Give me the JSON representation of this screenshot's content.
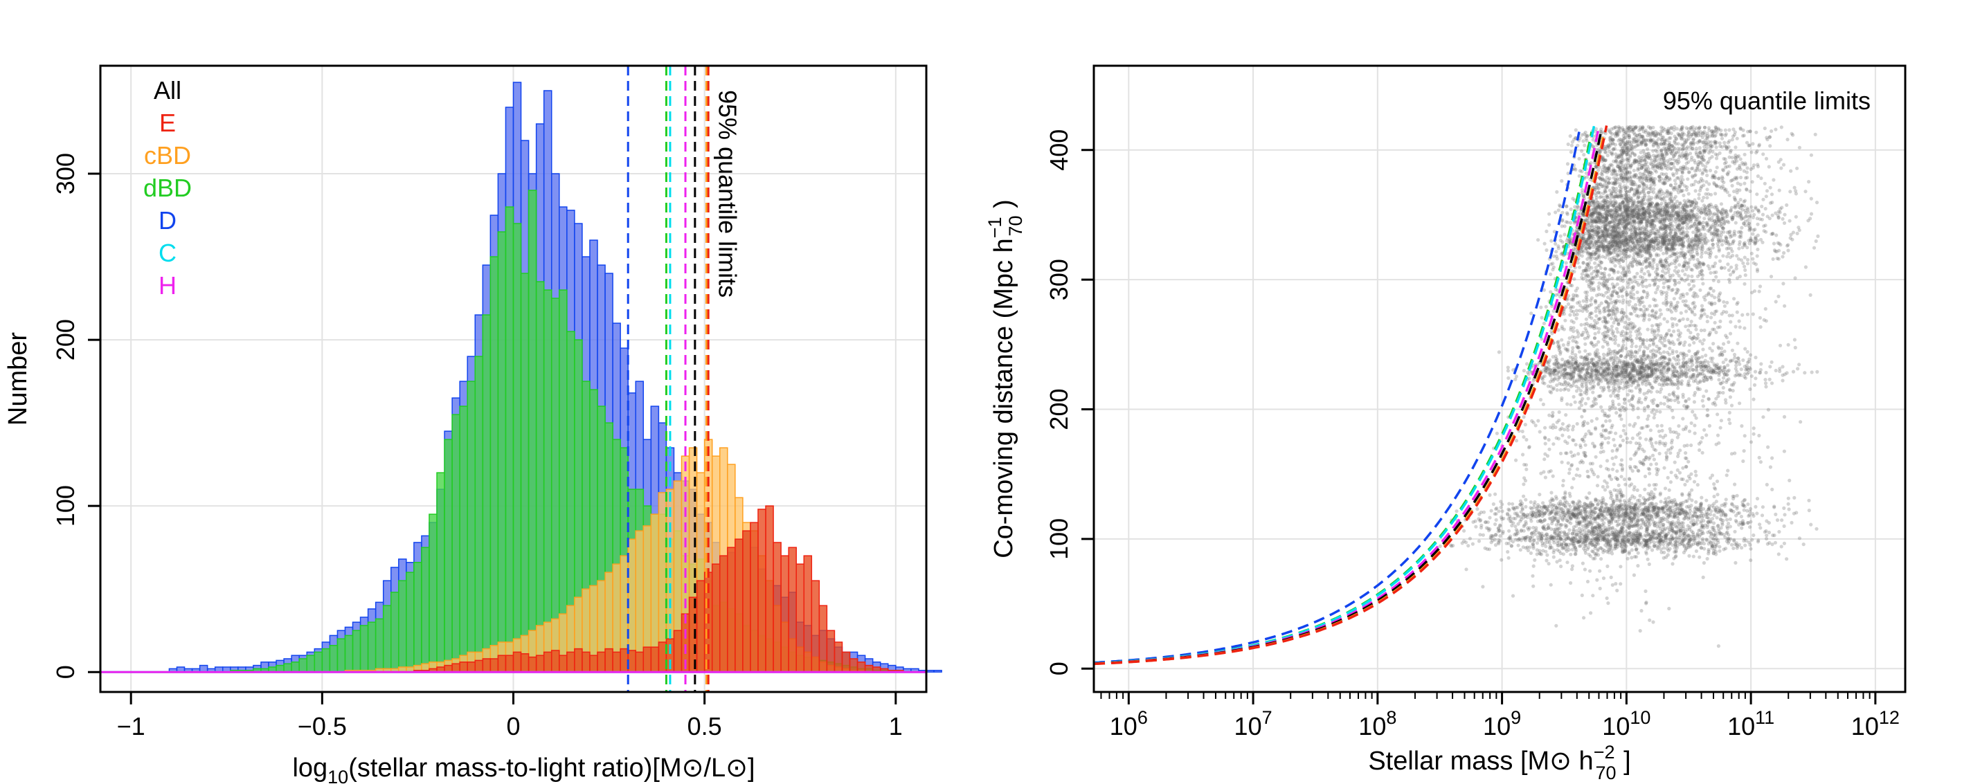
{
  "chart_data": [
    {
      "type": "histogram",
      "title": "",
      "xlabel": "log10(stellar mass-to-light ratio)[M⊙/L⊙]",
      "ylabel": "Number",
      "xlim": [
        -1.08,
        1.08
      ],
      "ylim": [
        -12,
        365
      ],
      "grid": true,
      "x_ticks": [
        {
          "value": -1,
          "label": "−1"
        },
        {
          "value": -0.5,
          "label": "−0.5"
        },
        {
          "value": 0,
          "label": "0"
        },
        {
          "value": 0.5,
          "label": "0.5"
        },
        {
          "value": 1,
          "label": "1"
        }
      ],
      "y_ticks": [
        {
          "value": 0,
          "label": "0"
        },
        {
          "value": 100,
          "label": "100"
        },
        {
          "value": 200,
          "label": "200"
        },
        {
          "value": 300,
          "label": "300"
        }
      ],
      "bin_start": -1.08,
      "bin_width": 0.02,
      "legend_position": "top-left",
      "legend": [
        {
          "name": "All",
          "color": "#000000"
        },
        {
          "name": "E",
          "color": "#ee2211"
        },
        {
          "name": "cBD",
          "color": "#ffa020"
        },
        {
          "name": "dBD",
          "color": "#22cc22"
        },
        {
          "name": "D",
          "color": "#1144ee"
        },
        {
          "name": "C",
          "color": "#00ddee"
        },
        {
          "name": "H",
          "color": "#ee22ee"
        }
      ],
      "series": [
        {
          "name": "D",
          "color": "#1144ee",
          "fill": "#5b72f0",
          "values": [
            0,
            0,
            0,
            0,
            0,
            0,
            0,
            0,
            0,
            2,
            3,
            2,
            2,
            4,
            2,
            3,
            3,
            3,
            3,
            3,
            4,
            6,
            6,
            7,
            8,
            10,
            10,
            12,
            14,
            18,
            22,
            25,
            27,
            30,
            33,
            38,
            42,
            55,
            63,
            68,
            66,
            78,
            82,
            90,
            110,
            145,
            165,
            175,
            190,
            215,
            245,
            275,
            300,
            340,
            355,
            320,
            300,
            330,
            350,
            300,
            280,
            278,
            270,
            250,
            260,
            245,
            240,
            210,
            195,
            168,
            175,
            140,
            160,
            150,
            135,
            120,
            115,
            110,
            95,
            90,
            78,
            70,
            72,
            80,
            85,
            75,
            62,
            55,
            52,
            45,
            48,
            30,
            28,
            22,
            25,
            20,
            15,
            12,
            12,
            10,
            8,
            6,
            5,
            4,
            3,
            2,
            2,
            1,
            1,
            1,
            0,
            0,
            0,
            0
          ]
        },
        {
          "name": "dBD",
          "color": "#22cc22",
          "fill": "#44d444",
          "values": [
            0,
            0,
            0,
            0,
            0,
            0,
            0,
            0,
            0,
            0,
            0,
            0,
            0,
            0,
            0,
            0,
            0,
            1,
            1,
            1,
            2,
            2,
            3,
            4,
            5,
            6,
            8,
            10,
            12,
            14,
            16,
            20,
            22,
            25,
            28,
            30,
            32,
            40,
            48,
            55,
            60,
            66,
            75,
            95,
            120,
            140,
            155,
            160,
            175,
            190,
            215,
            250,
            265,
            280,
            270,
            240,
            290,
            235,
            230,
            225,
            230,
            205,
            200,
            175,
            170,
            160,
            150,
            140,
            135,
            110,
            110,
            100,
            95,
            95,
            80,
            85,
            70,
            65,
            68,
            55,
            40,
            42,
            38,
            35,
            28,
            25,
            22,
            20,
            18,
            15,
            12,
            10,
            9,
            8,
            7,
            6,
            5,
            4,
            3,
            2,
            2,
            1,
            1,
            1,
            0,
            0,
            0,
            0
          ]
        },
        {
          "name": "cBD",
          "color": "#ffa020",
          "fill": "#ffc466",
          "values": [
            0,
            0,
            0,
            0,
            0,
            0,
            0,
            0,
            0,
            0,
            0,
            0,
            0,
            0,
            0,
            0,
            0,
            0,
            0,
            0,
            0,
            0,
            0,
            0,
            0,
            0,
            0,
            0,
            0,
            0,
            0,
            0,
            1,
            1,
            1,
            1,
            2,
            2,
            2,
            3,
            3,
            4,
            5,
            6,
            6,
            7,
            8,
            10,
            12,
            12,
            14,
            16,
            18,
            18,
            20,
            22,
            25,
            28,
            30,
            32,
            35,
            40,
            45,
            50,
            52,
            55,
            60,
            65,
            70,
            80,
            85,
            88,
            95,
            108,
            110,
            115,
            130,
            135,
            120,
            140,
            130,
            135,
            125,
            105,
            90,
            85,
            70,
            55,
            40,
            30,
            20,
            15,
            12,
            9,
            6,
            4,
            3,
            2,
            1,
            1,
            0,
            0,
            0,
            0,
            0,
            0,
            0,
            0
          ]
        },
        {
          "name": "E",
          "color": "#ee2211",
          "fill": "#e8481c",
          "values": [
            0,
            0,
            0,
            0,
            0,
            0,
            0,
            0,
            0,
            0,
            0,
            0,
            0,
            0,
            0,
            0,
            0,
            0,
            0,
            0,
            0,
            0,
            0,
            0,
            0,
            0,
            0,
            0,
            0,
            0,
            0,
            0,
            0,
            0,
            0,
            0,
            0,
            0,
            0,
            0,
            0,
            1,
            1,
            2,
            3,
            4,
            5,
            6,
            6,
            7,
            8,
            8,
            10,
            10,
            12,
            11,
            9,
            10,
            12,
            13,
            10,
            12,
            14,
            12,
            10,
            12,
            14,
            12,
            14,
            13,
            12,
            15,
            15,
            18,
            20,
            25,
            35,
            45,
            55,
            60,
            65,
            70,
            75,
            80,
            85,
            90,
            98,
            100,
            78,
            70,
            75,
            65,
            70,
            55,
            40,
            25,
            18,
            12,
            8,
            6,
            4,
            3,
            2,
            1,
            1,
            0,
            0,
            0
          ]
        },
        {
          "name": "C",
          "color": "#00ddee",
          "fill": "#00ddee",
          "values": [
            0,
            0,
            0,
            0,
            0,
            0,
            0,
            0,
            0,
            0,
            0,
            0,
            0,
            0,
            0,
            0,
            0,
            0,
            0,
            0,
            0,
            0,
            0,
            0,
            0,
            0,
            0,
            0,
            0,
            0,
            0,
            0,
            0,
            0,
            0,
            0,
            0,
            0,
            0,
            0,
            0,
            0,
            0,
            0,
            0,
            0,
            0,
            0,
            0,
            0,
            0,
            0,
            0,
            0,
            0,
            0,
            0,
            0,
            0,
            0,
            0,
            0,
            0,
            0,
            0,
            0,
            0,
            0,
            0,
            0,
            0,
            0,
            0,
            0,
            0,
            0,
            0,
            0,
            0,
            0,
            0,
            0,
            0,
            0,
            0,
            0,
            0,
            0,
            0,
            0,
            0,
            0,
            0,
            0,
            0,
            0,
            0,
            0,
            0,
            0,
            0,
            0,
            0,
            0,
            0,
            0,
            0,
            0,
            0
          ]
        },
        {
          "name": "H",
          "color": "#ee22ee",
          "fill": "#ee22ee",
          "values": [
            0,
            0,
            0,
            0,
            0,
            0,
            0,
            0,
            0,
            0,
            0,
            0,
            0,
            0,
            0,
            0,
            0,
            0,
            0,
            0,
            0,
            0,
            0,
            0,
            0,
            0,
            0,
            0,
            0,
            0,
            0,
            0,
            0,
            0,
            0,
            0,
            0,
            0,
            0,
            0,
            0,
            0,
            0,
            0,
            0,
            0,
            0,
            0,
            0,
            0,
            0,
            0,
            0,
            0,
            0,
            0,
            0,
            0,
            0,
            0,
            0,
            0,
            0,
            0,
            0,
            0,
            0,
            0,
            0,
            0,
            0,
            0,
            0,
            0,
            0,
            0,
            0,
            0,
            0,
            0,
            0,
            0,
            0,
            0,
            0,
            0,
            0,
            0,
            0,
            0,
            0,
            0,
            0,
            0,
            0,
            0,
            0,
            0,
            0,
            0,
            0,
            0,
            0,
            0,
            0,
            0,
            0,
            0,
            0
          ]
        }
      ],
      "quantile_lines": [
        {
          "name": "D",
          "value": 0.3,
          "color": "#1144ee"
        },
        {
          "name": "dBD",
          "value": 0.4,
          "color": "#22cc22"
        },
        {
          "name": "C",
          "value": 0.41,
          "color": "#00ddee"
        },
        {
          "name": "H",
          "value": 0.45,
          "color": "#ee22ee"
        },
        {
          "name": "All",
          "value": 0.475,
          "color": "#000000"
        },
        {
          "name": "cBD",
          "value": 0.505,
          "color": "#ffa020"
        },
        {
          "name": "E",
          "value": 0.51,
          "color": "#ee2211"
        }
      ],
      "annotation": "95% quantile limits"
    },
    {
      "type": "scatter",
      "title": "",
      "xlabel": "Stellar mass [M⊙ h70^−2 ]",
      "ylabel": "Co-moving distance (Mpc h70^−1 )",
      "x_scale": "log",
      "xlim_log10": [
        5.72,
        12.24
      ],
      "ylim": [
        -18,
        465
      ],
      "grid": true,
      "x_ticks": [
        {
          "exp": 6,
          "label": "10",
          "sup": "6"
        },
        {
          "exp": 7,
          "label": "10",
          "sup": "7"
        },
        {
          "exp": 8,
          "label": "10",
          "sup": "8"
        },
        {
          "exp": 9,
          "label": "10",
          "sup": "9"
        },
        {
          "exp": 10,
          "label": "10",
          "sup": "10"
        },
        {
          "exp": 11,
          "label": "10",
          "sup": "11"
        },
        {
          "exp": 12,
          "label": "10",
          "sup": "12"
        }
      ],
      "y_ticks": [
        {
          "value": 0,
          "label": "0"
        },
        {
          "value": 100,
          "label": "100"
        },
        {
          "value": 200,
          "label": "200"
        },
        {
          "value": 300,
          "label": "300"
        },
        {
          "value": 400,
          "label": "400"
        }
      ],
      "point_color": "#606060",
      "point_count": 9000,
      "distance_max": 418,
      "density_bands": [
        {
          "distance": 230,
          "label_density": "high"
        },
        {
          "distance": 330,
          "label_density": "high"
        },
        {
          "distance": 350,
          "label_density": "high"
        },
        {
          "distance": 120,
          "label_density": "medium"
        },
        {
          "distance": 100,
          "label_density": "medium"
        }
      ],
      "limit_curves": [
        {
          "name": "D",
          "color": "#1144ee",
          "log10_mass_at_400": 9.59
        },
        {
          "name": "dBD",
          "color": "#22cc22",
          "log10_mass_at_400": 9.69
        },
        {
          "name": "C",
          "color": "#00ddee",
          "log10_mass_at_400": 9.7
        },
        {
          "name": "H",
          "color": "#ee22ee",
          "log10_mass_at_400": 9.74
        },
        {
          "name": "All",
          "color": "#000000",
          "log10_mass_at_400": 9.765
        },
        {
          "name": "cBD",
          "color": "#ffa020",
          "log10_mass_at_400": 9.79
        },
        {
          "name": "E",
          "color": "#ee2211",
          "log10_mass_at_400": 9.8
        }
      ],
      "annotation": "95% quantile limits"
    }
  ]
}
